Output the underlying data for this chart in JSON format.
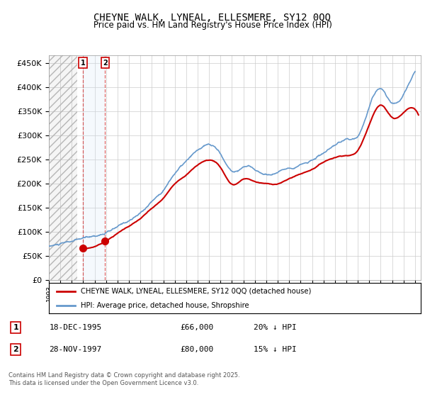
{
  "title": "CHEYNE WALK, LYNEAL, ELLESMERE, SY12 0QQ",
  "subtitle": "Price paid vs. HM Land Registry's House Price Index (HPI)",
  "legend_label_red": "CHEYNE WALK, LYNEAL, ELLESMERE, SY12 0QQ (detached house)",
  "legend_label_blue": "HPI: Average price, detached house, Shropshire",
  "sale1_date": 1995.96,
  "sale1_price": 66000,
  "sale1_label": "18-DEC-1995",
  "sale1_price_str": "£66,000",
  "sale1_hpi_text": "20% ↓ HPI",
  "sale2_date": 1997.91,
  "sale2_price": 80000,
  "sale2_label": "28-NOV-1997",
  "sale2_price_str": "£80,000",
  "sale2_hpi_text": "15% ↓ HPI",
  "footer": "Contains HM Land Registry data © Crown copyright and database right 2025.\nThis data is licensed under the Open Government Licence v3.0.",
  "ylim": [
    0,
    465000
  ],
  "xlim_start": 1993.0,
  "xlim_end": 2025.5,
  "red_color": "#cc0000",
  "blue_color": "#6699cc",
  "bg_color": "#ffffff",
  "grid_color": "#cccccc",
  "shade_color": "#d0e4f7",
  "hpi_years": [
    1993,
    1994,
    1995,
    1996,
    1997,
    1998,
    1999,
    2000,
    2001,
    2002,
    2003,
    2004,
    2005,
    2006,
    2007,
    2008,
    2009,
    2010,
    2011,
    2012,
    2013,
    2014,
    2015,
    2016,
    2017,
    2018,
    2019,
    2020,
    2021,
    2022,
    2023,
    2024,
    2025
  ],
  "hpi_values": [
    70000,
    74000,
    78000,
    83000,
    88000,
    95000,
    105000,
    118000,
    133000,
    158000,
    183000,
    218000,
    242000,
    262000,
    272000,
    252000,
    217000,
    227000,
    222000,
    212000,
    217000,
    227000,
    237000,
    247000,
    262000,
    272000,
    282000,
    292000,
    352000,
    392000,
    362000,
    382000,
    432000
  ],
  "red_years": [
    1995.96,
    1997.91,
    1999,
    2000,
    2001,
    2002,
    2003,
    2004,
    2005,
    2006,
    2007,
    2008,
    2009,
    2010,
    2011,
    2012,
    2013,
    2014,
    2015,
    2016,
    2017,
    2018,
    2019,
    2020,
    2021,
    2022,
    2023,
    2024,
    2025.3
  ],
  "red_values": [
    66000,
    80000,
    97000,
    112000,
    127000,
    147000,
    167000,
    197000,
    217000,
    237000,
    247000,
    232000,
    197000,
    207000,
    202000,
    197000,
    197000,
    207000,
    217000,
    227000,
    242000,
    252000,
    257000,
    267000,
    322000,
    362000,
    337000,
    347000,
    342000
  ]
}
